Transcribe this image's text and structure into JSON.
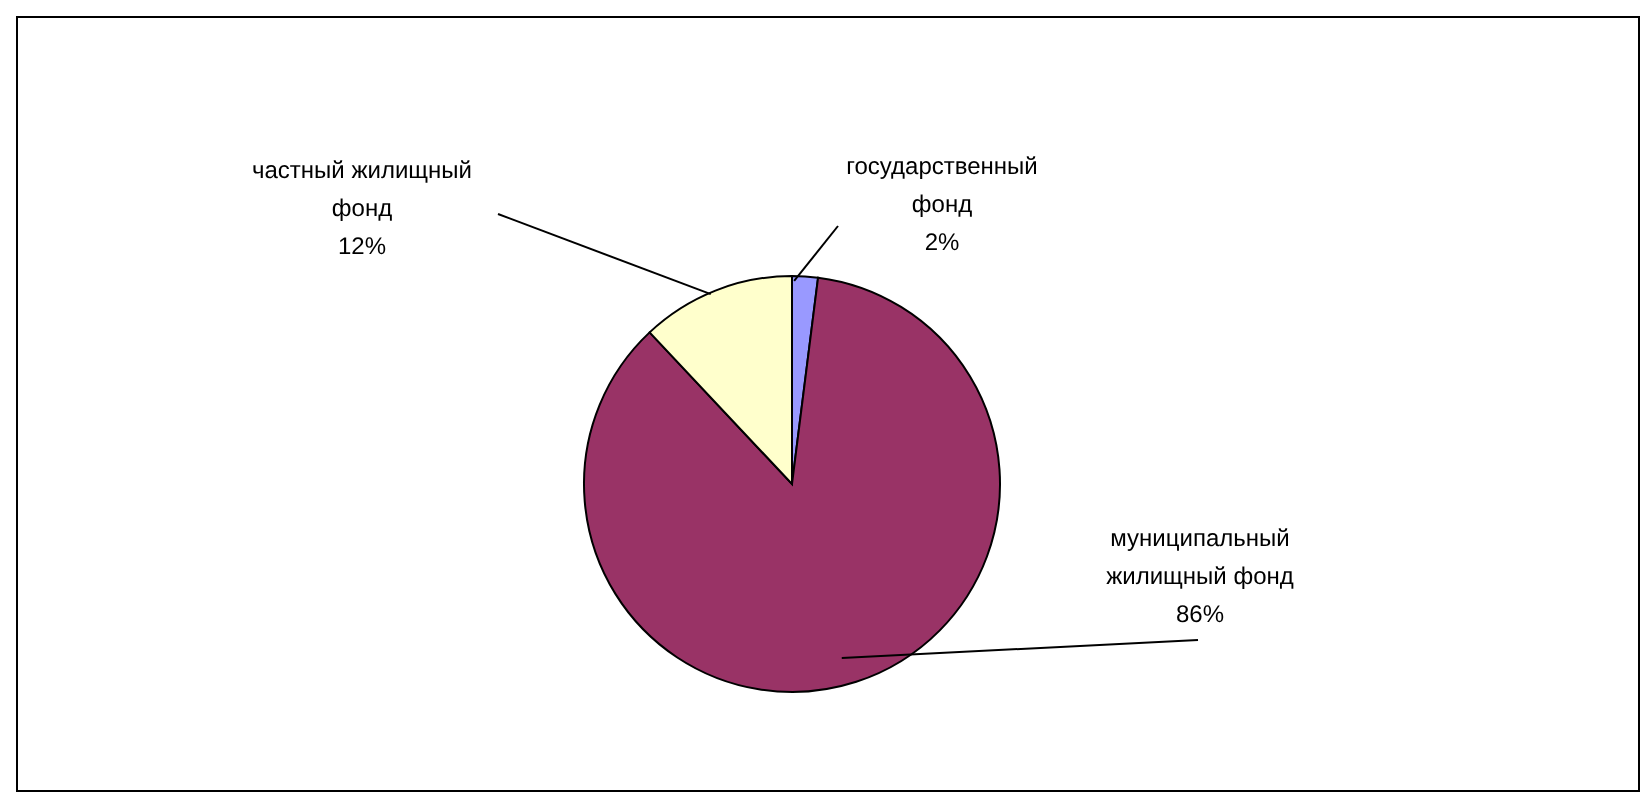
{
  "chart_data": {
    "type": "pie",
    "categories": [
      "государственный фонд",
      "муниципальный жилищный фонд",
      "частный жилищный фонд"
    ],
    "values": [
      2,
      86,
      12
    ],
    "value_labels": [
      "2%",
      "86%",
      "12%"
    ],
    "colors": [
      "#9999ff",
      "#993366",
      "#ffffcc"
    ]
  }
}
